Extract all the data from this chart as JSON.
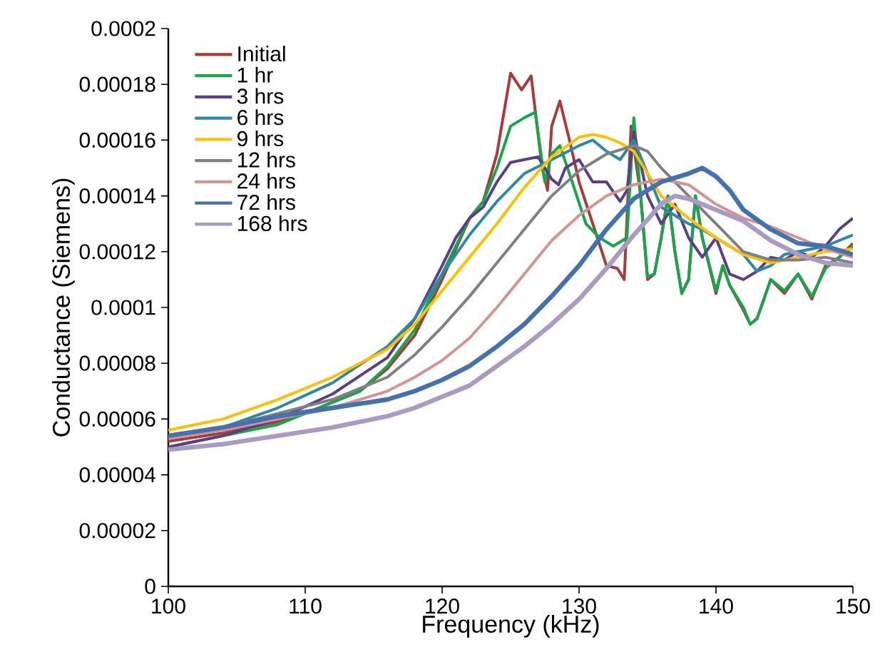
{
  "chart_data": {
    "type": "line",
    "xlabel": "Frequency (kHz)",
    "ylabel": "Conductance (Siemens)",
    "xlim": [
      100,
      150
    ],
    "xticks": [
      100,
      110,
      120,
      130,
      140,
      150
    ],
    "ylim": [
      0,
      0.0002
    ],
    "yticks": [
      0,
      {
        "value": 2e-05,
        "label": "0.00002"
      },
      {
        "value": 4e-05,
        "label": "0.00004"
      },
      {
        "value": 6e-05,
        "label": "0.00006"
      },
      {
        "value": 8e-05,
        "label": "0.00008"
      },
      {
        "value": 0.0001,
        "label": "0.0001"
      },
      {
        "value": 0.00012,
        "label": "0.00012"
      },
      {
        "value": 0.00014,
        "label": "0.00014"
      },
      {
        "value": 0.00016,
        "label": "0.00016"
      },
      {
        "value": 0.00018,
        "label": "0.00018"
      },
      0.0002
    ],
    "grid": false,
    "legend": "top left",
    "marker": "none",
    "line_style": "solid",
    "series": [
      {
        "name": "Initial",
        "color": "#a83c3c",
        "x": [
          100,
          104,
          108,
          110,
          112,
          114,
          116,
          118,
          120,
          122,
          123,
          124,
          125,
          125.8,
          126.5,
          127.3,
          127.7,
          128,
          128.6,
          129.3,
          130,
          131,
          132,
          132.8,
          133.3,
          133.8,
          134.5,
          135,
          135.5,
          136,
          136.5,
          137,
          137.5,
          138,
          138.5,
          139,
          140,
          140.5,
          141,
          142,
          142.5,
          143,
          144,
          145,
          146,
          147,
          148,
          149,
          150
        ],
        "values": [
          5.2e-05,
          5.5e-05,
          5.9e-05,
          6.2e-05,
          6.6e-05,
          7e-05,
          7.8e-05,
          9e-05,
          0.00011,
          0.000132,
          0.000138,
          0.000155,
          0.000184,
          0.000178,
          0.000183,
          0.00015,
          0.000142,
          0.000165,
          0.000174,
          0.00016,
          0.000145,
          0.00013,
          0.000115,
          0.000114,
          0.00011,
          0.000165,
          0.00014,
          0.00011,
          0.000112,
          0.000125,
          0.00014,
          0.00012,
          0.000105,
          0.00011,
          0.00014,
          0.000125,
          0.000105,
          0.000115,
          0.000108,
          9.9e-05,
          9.4e-05,
          9.6e-05,
          0.00011,
          0.000105,
          0.000112,
          0.000103,
          0.000115,
          0.000118,
          0.000123
        ]
      },
      {
        "name": "1 hr",
        "color": "#14a84a",
        "x": [
          100,
          104,
          108,
          110,
          112,
          114,
          116,
          118,
          120,
          122,
          123,
          124,
          125,
          126,
          126.8,
          127.5,
          128,
          128.6,
          129.5,
          130.5,
          131.5,
          132.5,
          133.5,
          134,
          134.5,
          135,
          135.5,
          136,
          136.5,
          137,
          137.5,
          138,
          138.5,
          139,
          140,
          140.5,
          141,
          142,
          142.5,
          143,
          144,
          145,
          146,
          147,
          148,
          149,
          150
        ],
        "values": [
          5e-05,
          5.4e-05,
          5.8e-05,
          6.2e-05,
          6.6e-05,
          7e-05,
          7.9e-05,
          9.2e-05,
          0.000112,
          0.000132,
          0.000138,
          0.00015,
          0.000165,
          0.000168,
          0.00017,
          0.000145,
          0.000155,
          0.000158,
          0.000145,
          0.00013,
          0.000125,
          0.000122,
          0.000125,
          0.000168,
          0.00014,
          0.000111,
          0.000112,
          0.000125,
          0.00014,
          0.00012,
          0.000105,
          0.00011,
          0.00014,
          0.000125,
          0.000106,
          0.000115,
          0.000108,
          0.0001,
          9.4e-05,
          9.6e-05,
          0.00011,
          0.000106,
          0.000112,
          0.000104,
          0.000114,
          0.000118,
          0.000122
        ]
      },
      {
        "name": "3 hrs",
        "color": "#5b3f86",
        "x": [
          100,
          104,
          108,
          112,
          116,
          118,
          120,
          121,
          122,
          123,
          124,
          125,
          126,
          127,
          128,
          128.5,
          129,
          130,
          131,
          132,
          133,
          133.5,
          134,
          135,
          136,
          137,
          138,
          139,
          140,
          141,
          142,
          143,
          144,
          145,
          146,
          147,
          148,
          149,
          150
        ],
        "values": [
          5e-05,
          5.4e-05,
          6e-05,
          6.9e-05,
          8.2e-05,
          9.6e-05,
          0.000115,
          0.000125,
          0.000132,
          0.000136,
          0.000145,
          0.000152,
          0.000153,
          0.000154,
          0.000146,
          0.000144,
          0.00015,
          0.000153,
          0.000145,
          0.000145,
          0.000138,
          0.000142,
          0.000163,
          0.00014,
          0.00013,
          0.000137,
          0.000125,
          0.000118,
          0.000125,
          0.000112,
          0.00011,
          0.000113,
          0.000118,
          0.000117,
          0.00012,
          0.000118,
          0.000122,
          0.000128,
          0.000132
        ]
      },
      {
        "name": "6 hrs",
        "color": "#2b8aa6",
        "x": [
          100,
          104,
          108,
          112,
          116,
          118,
          120,
          122,
          124,
          126,
          128,
          130,
          131,
          132,
          133,
          134,
          135,
          136,
          138,
          139,
          140,
          141,
          142,
          143,
          144,
          145,
          146,
          148,
          150
        ],
        "values": [
          5.3e-05,
          5.7e-05,
          6.4e-05,
          7.3e-05,
          8.6e-05,
          9.6e-05,
          0.000112,
          0.000126,
          0.000138,
          0.000148,
          0.000153,
          0.000158,
          0.00016,
          0.000156,
          0.000153,
          0.00016,
          0.000148,
          0.000136,
          0.00013,
          0.000128,
          0.000125,
          0.000122,
          0.000119,
          0.000113,
          0.000115,
          0.000119,
          0.00012,
          0.000122,
          0.000126
        ]
      },
      {
        "name": "9 hrs",
        "color": "#ffc000",
        "x": [
          100,
          104,
          108,
          112,
          116,
          118,
          120,
          122,
          124,
          126,
          128,
          130,
          131,
          132,
          133,
          134,
          135,
          136,
          138,
          140,
          142,
          144,
          146,
          148,
          150
        ],
        "values": [
          5.6e-05,
          6e-05,
          6.7e-05,
          7.5e-05,
          8.5e-05,
          9.4e-05,
          0.000106,
          0.000118,
          0.00013,
          0.000143,
          0.000154,
          0.000161,
          0.000162,
          0.000161,
          0.000159,
          0.000156,
          0.000148,
          0.00014,
          0.000132,
          0.000125,
          0.000119,
          0.000116,
          0.000118,
          0.00012,
          0.000121
        ]
      },
      {
        "name": "12 hrs",
        "color": "#808080",
        "x": [
          100,
          104,
          108,
          112,
          116,
          118,
          120,
          122,
          124,
          126,
          128,
          130,
          132,
          134,
          135,
          136,
          138,
          140,
          142,
          144,
          146,
          148,
          150
        ],
        "values": [
          5.4e-05,
          5.7e-05,
          6.2e-05,
          6.7e-05,
          7.5e-05,
          8.3e-05,
          9.3e-05,
          0.000104,
          0.000116,
          0.000128,
          0.00014,
          0.000149,
          0.000155,
          0.000158,
          0.000156,
          0.00015,
          0.00014,
          0.00013,
          0.00012,
          0.000117,
          0.000117,
          0.000118,
          0.000116
        ]
      },
      {
        "name": "24 hrs",
        "color": "#d59391",
        "x": [
          100,
          104,
          108,
          112,
          116,
          118,
          120,
          122,
          124,
          126,
          128,
          130,
          132,
          134,
          136,
          138,
          140,
          142,
          144,
          146,
          148,
          150
        ],
        "values": [
          5.3e-05,
          5.6e-05,
          6e-05,
          6.4e-05,
          7e-05,
          7.5e-05,
          8.1e-05,
          8.9e-05,
          0.0001,
          0.000112,
          0.000124,
          0.000133,
          0.00014,
          0.000144,
          0.000146,
          0.000144,
          0.000137,
          0.000132,
          0.000129,
          0.000125,
          0.000121,
          0.000118
        ]
      },
      {
        "name": "72 hrs",
        "color": "#4472b0",
        "x": [
          100,
          104,
          108,
          112,
          116,
          118,
          120,
          122,
          124,
          126,
          128,
          130,
          132,
          134,
          136,
          138,
          139,
          140,
          141,
          142,
          144,
          146,
          148,
          150
        ],
        "values": [
          5.4e-05,
          5.7e-05,
          6.1e-05,
          6.4e-05,
          6.7e-05,
          7e-05,
          7.4e-05,
          7.9e-05,
          8.6e-05,
          9.4e-05,
          0.000104,
          0.000115,
          0.000128,
          0.000139,
          0.000145,
          0.000148,
          0.00015,
          0.000147,
          0.000142,
          0.000135,
          0.000128,
          0.000123,
          0.000122,
          0.000119
        ]
      },
      {
        "name": "168 hrs",
        "color": "#a99bc4",
        "x": [
          100,
          104,
          108,
          112,
          116,
          118,
          120,
          122,
          124,
          126,
          128,
          130,
          132,
          134,
          136,
          137,
          138,
          140,
          142,
          144,
          146,
          148,
          150
        ],
        "values": [
          4.9e-05,
          5.1e-05,
          5.4e-05,
          5.7e-05,
          6.1e-05,
          6.4e-05,
          6.8e-05,
          7.2e-05,
          7.9e-05,
          8.6e-05,
          9.4e-05,
          0.000103,
          0.000114,
          0.000126,
          0.000137,
          0.00014,
          0.000139,
          0.000135,
          0.000131,
          0.000124,
          0.000119,
          0.000116,
          0.000115
        ]
      }
    ]
  }
}
